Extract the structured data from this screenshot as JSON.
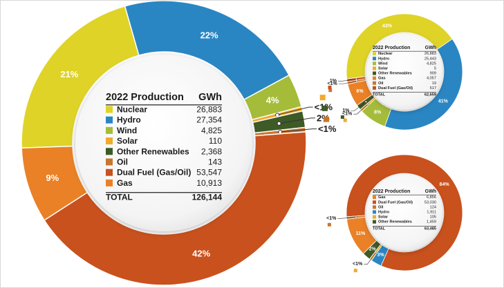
{
  "colors": {
    "nuclear": "#dfd327",
    "hydro": "#2a86c3",
    "wind": "#a5bc3a",
    "solar": "#f1aa2a",
    "other_renewables": "#3e5a26",
    "oil": "#c8762e",
    "dual_fuel": "#c9511d",
    "gas": "#ea8126",
    "center_fill": "#f3f3f3",
    "text": "#1a1a1a",
    "percent_label": "#ffffff"
  },
  "chart_data": [
    {
      "type": "pie",
      "variant": "donut",
      "title": "2022 Production",
      "value_header": "GWh",
      "total_label": "TOTAL",
      "total": "126,144",
      "slices": [
        {
          "key": "nuclear",
          "label": "Nuclear",
          "value": 26883,
          "value_text": "26,883",
          "color": "#dfd327",
          "pct_label": "21%"
        },
        {
          "key": "hydro",
          "label": "Hydro",
          "value": 27354,
          "value_text": "27,354",
          "color": "#2a86c3",
          "pct_label": "22%"
        },
        {
          "key": "wind",
          "label": "Wind",
          "value": 4825,
          "value_text": "4,825",
          "color": "#a5bc3a",
          "pct_label": "4%"
        },
        {
          "key": "solar",
          "label": "Solar",
          "value": 110,
          "value_text": "110",
          "color": "#f1aa2a",
          "pct_label": "<1%"
        },
        {
          "key": "other_renewables",
          "label": "Other Renewables",
          "value": 2368,
          "value_text": "2,368",
          "color": "#3e5a26",
          "pct_label": "2%"
        },
        {
          "key": "oil",
          "label": "Oil",
          "value": 143,
          "value_text": "143",
          "color": "#c8762e",
          "pct_label": "<1%"
        },
        {
          "key": "dual_fuel",
          "label": "Dual Fuel (Gas/Oil)",
          "value": 53547,
          "value_text": "53,547",
          "color": "#c9511d",
          "pct_label": "42%"
        },
        {
          "key": "gas",
          "label": "Gas",
          "value": 10913,
          "value_text": "10,913",
          "color": "#ea8126",
          "pct_label": "9%"
        }
      ]
    },
    {
      "type": "pie",
      "variant": "donut",
      "title": "2022 Production",
      "value_header": "GWh",
      "total_label": "TOTAL",
      "total": "62,659",
      "slices": [
        {
          "key": "nuclear",
          "label": "Nuclear",
          "value": 26883,
          "value_text": "26,883",
          "color": "#dfd327",
          "pct_label": "43%"
        },
        {
          "key": "hydro",
          "label": "Hydro",
          "value": 25443,
          "value_text": "25,443",
          "color": "#2a86c3",
          "pct_label": "41%"
        },
        {
          "key": "wind",
          "label": "Wind",
          "value": 4825,
          "value_text": "4,825",
          "color": "#a5bc3a",
          "pct_label": "8%"
        },
        {
          "key": "solar",
          "label": "Solar",
          "value": 5,
          "value_text": "5",
          "color": "#f1aa2a",
          "pct_label": "<1%"
        },
        {
          "key": "other_renewables",
          "label": "Other Renewables",
          "value": 909,
          "value_text": "909",
          "color": "#3e5a26",
          "pct_label": "1%"
        },
        {
          "key": "gas",
          "label": "Gas",
          "value": 4057,
          "value_text": "4,057",
          "color": "#ea8126",
          "pct_label": "6%"
        },
        {
          "key": "oil",
          "label": "Oil",
          "value": 19,
          "value_text": "19",
          "color": "#c8762e",
          "pct_label": "<1%"
        },
        {
          "key": "dual_fuel",
          "label": "Dual Fuel (Gas/Oil)",
          "value": 517,
          "value_text": "517",
          "color": "#c9511d",
          "pct_label": "1%"
        }
      ]
    },
    {
      "type": "pie",
      "variant": "donut",
      "title": "2022 Production",
      "value_header": "GWh",
      "total_label": "TOTAL",
      "total": "63,485",
      "slices": [
        {
          "key": "dual_fuel",
          "label": "Dual Fuel (Gas/Oil)",
          "value": 53030,
          "value_text": "53,030",
          "color": "#c9511d",
          "pct_label": "84%"
        },
        {
          "key": "hydro",
          "label": "Hydro",
          "value": 1911,
          "value_text": "1,911",
          "color": "#2a86c3",
          "pct_label": "3%"
        },
        {
          "key": "solar",
          "label": "Solar",
          "value": 105,
          "value_text": "105",
          "color": "#f1aa2a",
          "pct_label": "<1%"
        },
        {
          "key": "other_renewables",
          "label": "Other Renewables",
          "value": 1459,
          "value_text": "1,459",
          "color": "#3e5a26",
          "pct_label": "2%"
        },
        {
          "key": "gas",
          "label": "Gas",
          "value": 6856,
          "value_text": "6,856",
          "color": "#ea8126",
          "pct_label": "11%"
        },
        {
          "key": "oil",
          "label": "Oil",
          "value": 124,
          "value_text": "124",
          "color": "#c8762e",
          "pct_label": "<1%"
        }
      ],
      "legend_order": [
        "gas",
        "dual_fuel",
        "oil",
        "hydro",
        "solar",
        "other_renewables"
      ]
    }
  ]
}
